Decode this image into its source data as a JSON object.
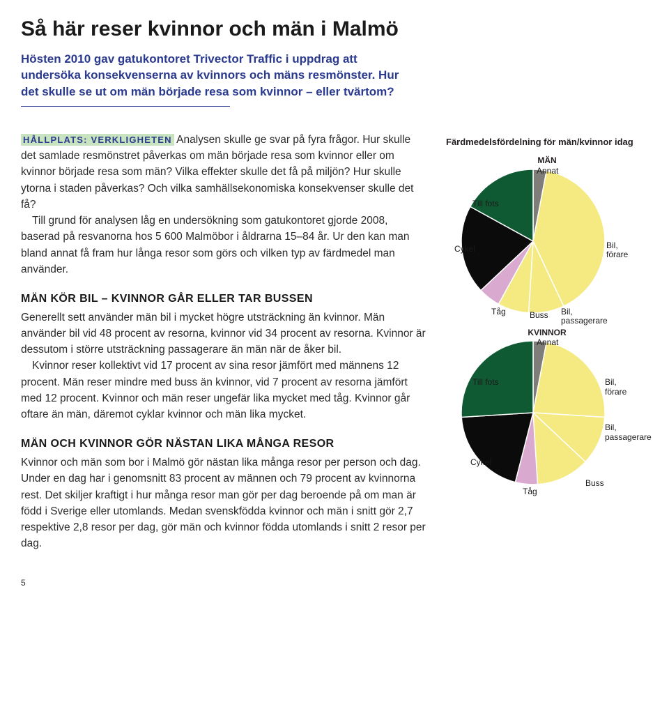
{
  "title": "Så här reser kvinnor och män i Malmö",
  "intro": "Hösten 2010 gav gatukontoret Trivector Traffic i uppdrag att undersöka konsekvenserna av kvinnors och mäns resmönster. Hur det skulle se ut om män började resa som kvinnor – eller tvärtom?",
  "tag": "HÅLLPLATS: VERKLIGHETEN",
  "p1a": " Analysen skulle ge svar på fyra frågor. Hur skulle det samlade resmönstret påverkas om män började resa som kvinnor eller om kvinnor började resa som män? Vilka effekter skulle det få på miljön? Hur skulle ytorna i staden påverkas? Och vilka samhällsekonomiska konsekvenser skulle det få?",
  "p1b": "Till grund för analysen låg en undersökning som gatukontoret gjorde 2008, baserad på  resvanorna hos 5 600 Malmöbor i åldrarna 15–84 år. Ur den kan man bland annat få fram hur långa resor som görs och vilken typ av färdmedel man använder.",
  "h2a": "MÄN KÖR BIL – KVINNOR GÅR ELLER TAR BUSSEN",
  "p2a": "Generellt sett använder män bil i mycket högre utsträckning än kvinnor. Män använder bil vid 48 procent av resorna, kvinnor vid 34 procent av resorna. Kvinnor är dessutom i större utsträckning passagerare än män när de åker bil.",
  "p2b": "Kvinnor reser kollektivt vid 17 procent av sina resor jämfört med männens 12 procent. Män reser mindre med buss än kvinnor, vid 7 procent av resorna jämfört med 12 procent. Kvinnor och män reser ungefär lika mycket med tåg. Kvinnor går oftare än män, däremot cyklar kvinnor och män lika mycket.",
  "h2b": "MÄN OCH KVINNOR GÖR NÄSTAN LIKA MÅNGA RESOR",
  "p3": "Kvinnor och män som bor i Malmö gör nästan lika många resor per person och dag. Under en dag har i genomsnitt 83 procent av männen och 79 procent av kvinnorna rest. Det skiljer kraftigt i hur många resor man gör per dag beroende på om man är född i Sverige eller utomlands. Medan svenskfödda kvinnor och män i snitt gör 2,7 respektive 2,8 resor per dag, gör män och kvinnor födda utomlands i snitt 2 resor per dag.",
  "page": "5",
  "chart": {
    "title": "Färdmedelsfördelning för män/kvinnor idag",
    "sub1": "MÄN",
    "sub2": "KVINNOR",
    "colors": {
      "bil_forare": "#f4ea81",
      "bil_pass": "#f4ea81",
      "buss": "#f4ea81",
      "tag": "#d9a9cf",
      "cykel": "#0b0b0b",
      "till_fots": "#0f5a33",
      "annat": "#7f7d7a"
    },
    "labels": {
      "annat": "Annat",
      "till_fots": "Till fots",
      "cykel": "Cykel",
      "tag": "Tåg",
      "buss": "Buss",
      "bil_forare": "Bil,\nförare",
      "bil_pass": "Bil,\npassagerare"
    },
    "men": [
      {
        "k": "annat",
        "v": 3
      },
      {
        "k": "bil_forare",
        "v": 40
      },
      {
        "k": "bil_pass",
        "v": 8
      },
      {
        "k": "buss",
        "v": 7
      },
      {
        "k": "tag",
        "v": 5
      },
      {
        "k": "cykel",
        "v": 20
      },
      {
        "k": "till_fots",
        "v": 17
      }
    ],
    "women": [
      {
        "k": "annat",
        "v": 3
      },
      {
        "k": "bil_forare",
        "v": 23
      },
      {
        "k": "bil_pass",
        "v": 11
      },
      {
        "k": "buss",
        "v": 12
      },
      {
        "k": "tag",
        "v": 5
      },
      {
        "k": "cykel",
        "v": 20
      },
      {
        "k": "till_fots",
        "v": 26
      }
    ]
  }
}
